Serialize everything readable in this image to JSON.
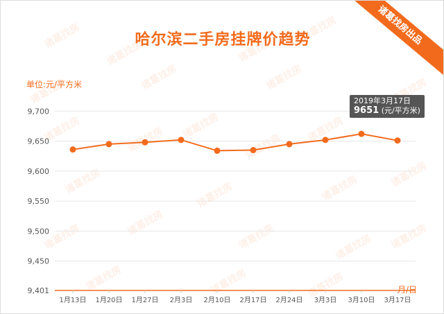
{
  "chart_data": {
    "type": "line",
    "title": "哈尔滨二手房挂牌价趋势",
    "ylabel": "单位:元/平方米",
    "xlabel": "月/日",
    "categories": [
      "1月13日",
      "1月20日",
      "1月27日",
      "2月3日",
      "2月10日",
      "2月17日",
      "2月24日",
      "3月3日",
      "3月10日",
      "3月17日"
    ],
    "values": [
      9636,
      9645,
      9648,
      9652,
      9634,
      9635,
      9645,
      9652,
      9662,
      9651
    ],
    "yticks": [
      "9,401",
      "9,450",
      "9,500",
      "9,550",
      "9,600",
      "9,650",
      "9,700"
    ],
    "ylim": [
      9401,
      9720
    ],
    "color": "#f26b1d",
    "grid": true,
    "tooltip": {
      "date": "2019年3月17日",
      "value": "9651",
      "unit": "(元/平方米)"
    }
  },
  "watermark": "诸葛找房",
  "ribbon": "诸葛找房出品"
}
